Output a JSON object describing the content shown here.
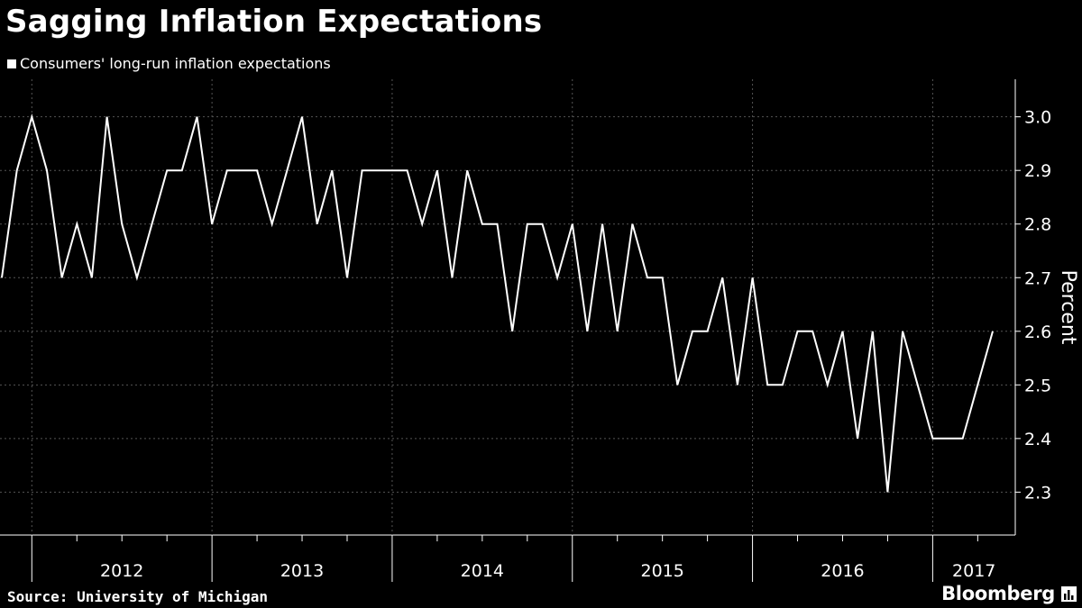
{
  "header": {
    "title": "Sagging Inflation Expectations"
  },
  "footer": {
    "source": "Source: University of Michigan",
    "brand": "Bloomberg"
  },
  "icons": {
    "brand": "bar-chart-icon"
  },
  "colors": {
    "background": "#000000",
    "line": "#ffffff",
    "grid": "#555555"
  },
  "chart_data": {
    "type": "line",
    "title": "Sagging Inflation Expectations",
    "xlabel": "",
    "ylabel": "Percent",
    "legend": "top-left",
    "grid": true,
    "ylim": [
      2.22,
      3.07
    ],
    "yticks": [
      "2.3",
      "2.4",
      "2.5",
      "2.6",
      "2.7",
      "2.8",
      "2.9",
      "3.0"
    ],
    "year_labels": [
      "2012",
      "2013",
      "2014",
      "2015",
      "2016",
      "2017"
    ],
    "series": [
      {
        "name": "Consumers' long-run inflation expectations",
        "start": "2011-11",
        "values": [
          2.7,
          2.9,
          3.0,
          2.9,
          2.7,
          2.8,
          2.7,
          3.0,
          2.8,
          2.7,
          2.8,
          2.9,
          2.9,
          3.0,
          2.8,
          2.9,
          2.9,
          2.9,
          2.8,
          2.9,
          3.0,
          2.8,
          2.9,
          2.7,
          2.9,
          2.9,
          2.9,
          2.9,
          2.8,
          2.9,
          2.7,
          2.9,
          2.8,
          2.8,
          2.6,
          2.8,
          2.8,
          2.7,
          2.8,
          2.6,
          2.8,
          2.6,
          2.8,
          2.7,
          2.7,
          2.5,
          2.6,
          2.6,
          2.7,
          2.5,
          2.7,
          2.5,
          2.5,
          2.6,
          2.6,
          2.5,
          2.6,
          2.4,
          2.6,
          2.3,
          2.6,
          2.5,
          2.4,
          2.4,
          2.4,
          2.5,
          2.6
        ]
      }
    ]
  }
}
